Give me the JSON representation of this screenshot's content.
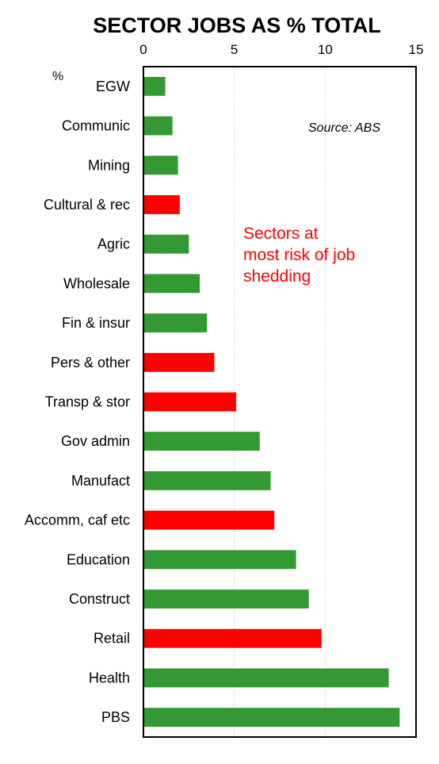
{
  "chart_data": {
    "type": "bar",
    "orientation": "horizontal",
    "title": "SECTOR JOBS AS % TOTAL",
    "unit_label": "%",
    "source": "Source: ABS",
    "annotation": [
      "Sectors at",
      "most risk of job",
      "shedding"
    ],
    "xlim": [
      0,
      15
    ],
    "xticks": [
      0,
      5,
      10,
      15
    ],
    "grid": "vertical-dotted",
    "colors": {
      "normal": "#339933",
      "at_risk": "#ff0000",
      "annotation": "#ff0000"
    },
    "categories": [
      "EGW",
      "Communic",
      "Mining",
      "Cultural & rec",
      "Agric",
      "Wholesale",
      "Fin & insur",
      "Pers & other",
      "Transp & stor",
      "Gov admin",
      "Manufact",
      "Accomm, caf etc",
      "Education",
      "Construct",
      "Retail",
      "Health",
      "PBS"
    ],
    "values": [
      1.2,
      1.6,
      1.9,
      2.0,
      2.5,
      3.1,
      3.5,
      3.9,
      5.1,
      6.4,
      7.0,
      7.2,
      8.4,
      9.1,
      9.8,
      13.5,
      14.1
    ],
    "at_risk": [
      false,
      false,
      false,
      true,
      false,
      false,
      false,
      true,
      true,
      false,
      false,
      true,
      false,
      false,
      true,
      false,
      false
    ]
  }
}
